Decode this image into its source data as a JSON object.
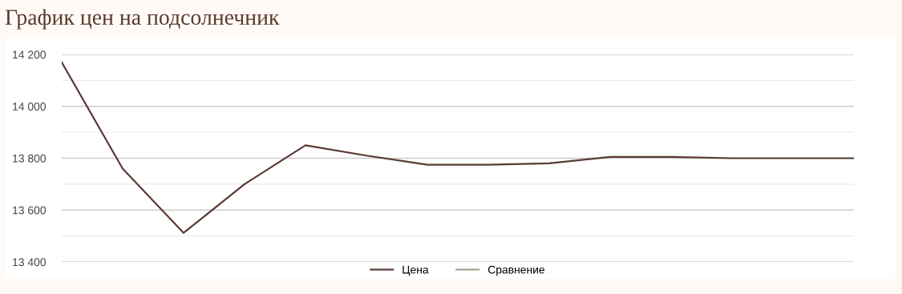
{
  "chart_data": {
    "type": "line",
    "title": "График цен на подсолнечник",
    "categories": [
      null,
      null,
      null,
      null,
      null,
      null,
      null,
      null,
      null,
      null,
      null,
      null,
      null,
      null
    ],
    "series": [
      {
        "name": "Цена",
        "color": "#5a3a33",
        "values": [
          14170,
          13760,
          13512,
          13700,
          13850,
          13810,
          13775,
          13775,
          13780,
          13805,
          13805,
          13800,
          13800,
          13800
        ]
      },
      {
        "name": "Сравнение",
        "color": "#a0a890",
        "values": [
          null,
          null,
          null,
          null,
          null,
          null,
          null,
          null,
          null,
          null,
          null,
          null,
          null,
          null
        ]
      }
    ],
    "ylim": [
      13400,
      14200
    ],
    "yticks": [
      {
        "value": 13400,
        "label": "13 400"
      },
      {
        "value": 13500,
        "label": null
      },
      {
        "value": 13600,
        "label": "13 600"
      },
      {
        "value": 13700,
        "label": null
      },
      {
        "value": 13800,
        "label": "13 800"
      },
      {
        "value": 13900,
        "label": null
      },
      {
        "value": 14000,
        "label": "14 000"
      },
      {
        "value": 14100,
        "label": null
      },
      {
        "value": 14200,
        "label": "14 200"
      }
    ],
    "grid": "y",
    "legend": "bottom",
    "marker": "none",
    "line_style": "solid",
    "tick_labels": "y"
  }
}
